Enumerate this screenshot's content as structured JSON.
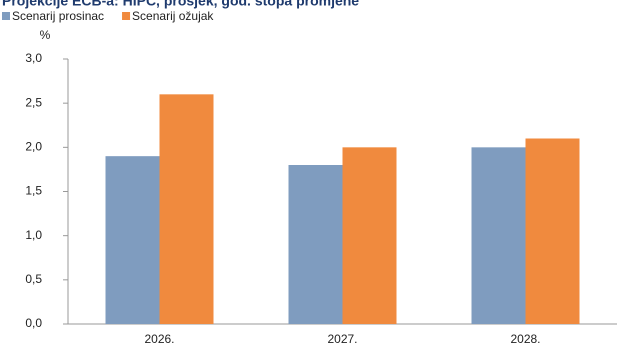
{
  "chart_data": {
    "type": "bar",
    "title": "Projekcije ECB-a: HIPC, prosjek, god. stopa promjene",
    "y_label": "%",
    "categories": [
      "2026.",
      "2027.",
      "2028."
    ],
    "series": [
      {
        "name": "Scenarij prosinac",
        "color": "#7f9cbf",
        "values": [
          1.9,
          1.8,
          2.0
        ]
      },
      {
        "name": "Scenarij ožujak",
        "color": "#f08a3e",
        "values": [
          2.6,
          2.0,
          2.1
        ]
      }
    ],
    "ylim": [
      0,
      3
    ],
    "yticks": [
      {
        "value": 0,
        "label": "0,0"
      },
      {
        "value": 0.5,
        "label": "0,5"
      },
      {
        "value": 1,
        "label": "1,0"
      },
      {
        "value": 1.5,
        "label": "1,5"
      },
      {
        "value": 2,
        "label": "2,0"
      },
      {
        "value": 2.5,
        "label": "2,5"
      },
      {
        "value": 3,
        "label": "3,0"
      }
    ],
    "grid": false
  }
}
